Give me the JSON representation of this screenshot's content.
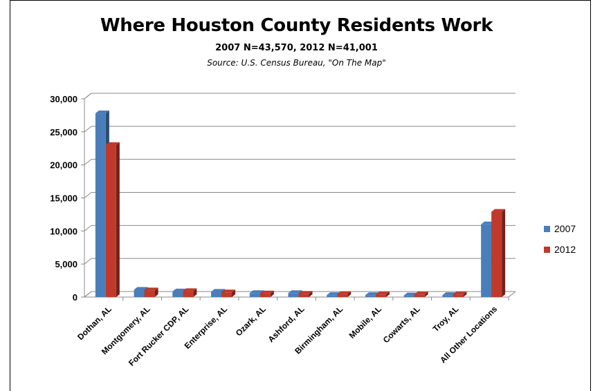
{
  "chart_data": {
    "type": "bar",
    "title": "Where Houston County Residents Work",
    "subtitle": "2007  N=43,570,  2012  N=41,001",
    "source": "Source: U.S. Census Bureau, \"On The Map\"",
    "categories": [
      "Dothan, AL",
      "Montgomery, AL",
      "Fort Rucker CDP, AL",
      "Enterprise, AL",
      "Ozark, AL",
      "Ashford, AL",
      "Birmingham, AL",
      "Mobile, AL",
      "Cowarts, AL",
      "Troy, AL",
      "All Other Locations"
    ],
    "series": [
      {
        "name": "2007",
        "color": "#4a7ebb",
        "values": [
          27800,
          1100,
          850,
          800,
          600,
          600,
          300,
          300,
          250,
          300,
          11000
        ]
      },
      {
        "name": "2012",
        "color": "#c0392b",
        "values": [
          23000,
          1000,
          900,
          700,
          550,
          500,
          450,
          400,
          400,
          400,
          12900
        ]
      }
    ],
    "yticks": [
      "0",
      "5,000",
      "10,000",
      "15,000",
      "20,000",
      "25,000",
      "30,000"
    ],
    "ylim": [
      0,
      30000
    ],
    "grid": true,
    "legend": "right"
  }
}
